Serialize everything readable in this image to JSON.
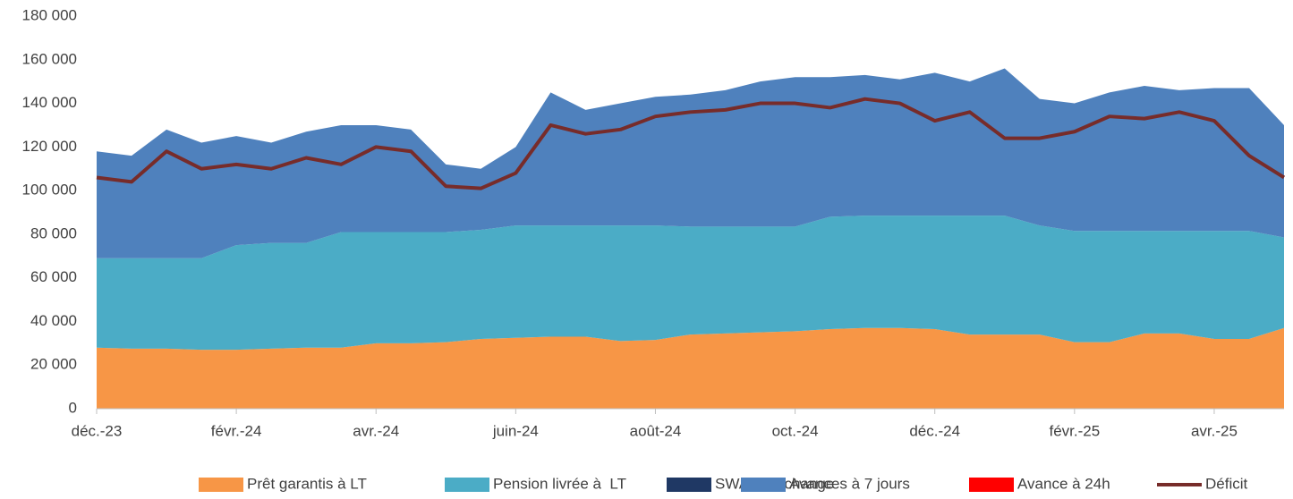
{
  "chart_data": {
    "type": "stacked-area-line",
    "categories": [
      "déc.-23",
      null,
      null,
      null,
      "févr.-24",
      null,
      null,
      null,
      "avr.-24",
      null,
      null,
      null,
      "juin-24",
      null,
      null,
      null,
      "août-24",
      null,
      null,
      null,
      "oct.-24",
      null,
      null,
      null,
      "déc.-24",
      null,
      null,
      null,
      "févr.-25",
      null,
      null,
      null,
      "avr.-25",
      null,
      null
    ],
    "series": [
      {
        "name": "Prêt garantis à LT",
        "color": "#f79646",
        "kind": "area",
        "values": [
          28000,
          27500,
          27500,
          27000,
          27000,
          27500,
          28000,
          28000,
          30000,
          30000,
          30500,
          32000,
          32500,
          33000,
          33000,
          31000,
          31500,
          34000,
          34500,
          35000,
          35500,
          36500,
          37000,
          37000,
          36500,
          34000,
          34000,
          34000,
          30500,
          30500,
          34500,
          34500,
          32000,
          32000,
          37000
        ]
      },
      {
        "name": "Pension livrée à  LT",
        "color": "#4bacc6",
        "kind": "area",
        "values": [
          41000,
          41500,
          41500,
          42000,
          48000,
          48500,
          48000,
          53000,
          51000,
          51000,
          50500,
          50000,
          51500,
          51000,
          51000,
          53000,
          52500,
          49500,
          49000,
          48500,
          48000,
          51500,
          51500,
          51500,
          52000,
          54500,
          54500,
          50000,
          51000,
          51000,
          47000,
          47000,
          49500,
          49500,
          41500
        ]
      },
      {
        "name": "SWAP de change",
        "color": "#1f3864",
        "kind": "area",
        "values": [
          0,
          0,
          0,
          0,
          0,
          0,
          0,
          0,
          0,
          0,
          0,
          0,
          0,
          0,
          0,
          0,
          0,
          0,
          0,
          0,
          0,
          0,
          0,
          0,
          0,
          0,
          0,
          0,
          0,
          0,
          0,
          0,
          0,
          0,
          0
        ]
      },
      {
        "name": "Avances à 7 jours",
        "color": "#4f81bd",
        "kind": "area",
        "values": [
          49000,
          47000,
          59000,
          53000,
          50000,
          46000,
          51000,
          49000,
          49000,
          47000,
          31000,
          28000,
          36000,
          61000,
          53000,
          56000,
          59000,
          60500,
          62500,
          66500,
          68500,
          64000,
          64500,
          62500,
          65500,
          61500,
          67500,
          58000,
          58500,
          63500,
          66500,
          64500,
          65500,
          65500,
          51500
        ]
      },
      {
        "name": "Avance à 24h",
        "color": "#ff0000",
        "kind": "area",
        "values": [
          0,
          0,
          0,
          0,
          0,
          0,
          0,
          0,
          0,
          0,
          0,
          0,
          0,
          0,
          0,
          0,
          0,
          0,
          0,
          0,
          0,
          0,
          0,
          0,
          0,
          0,
          0,
          0,
          0,
          0,
          0,
          0,
          0,
          0,
          0
        ]
      },
      {
        "name": "Déficit",
        "color": "#772c2a",
        "kind": "line",
        "values": [
          106000,
          104000,
          118000,
          110000,
          112000,
          110000,
          115000,
          112000,
          120000,
          118000,
          102000,
          101000,
          108000,
          130000,
          126000,
          128000,
          134000,
          136000,
          137000,
          140000,
          140000,
          138000,
          142000,
          140000,
          132000,
          136000,
          124000,
          124000,
          127000,
          134000,
          133000,
          136000,
          132000,
          116000,
          106000
        ]
      }
    ],
    "ylim": [
      0,
      180000
    ],
    "yticks": [
      0,
      {
        "value": 20000,
        "label": "20 000"
      },
      {
        "value": 40000,
        "label": "40 000"
      },
      {
        "value": 60000,
        "label": "60 000"
      },
      {
        "value": 80000,
        "label": "80 000"
      },
      {
        "value": 100000,
        "label": "100 000"
      },
      {
        "value": 120000,
        "label": "120 000"
      },
      {
        "value": 140000,
        "label": "140 000"
      },
      {
        "value": 160000,
        "label": "160 000"
      },
      {
        "value": 180000,
        "label": "180 000"
      }
    ],
    "grid": false,
    "legend": "bottom"
  }
}
